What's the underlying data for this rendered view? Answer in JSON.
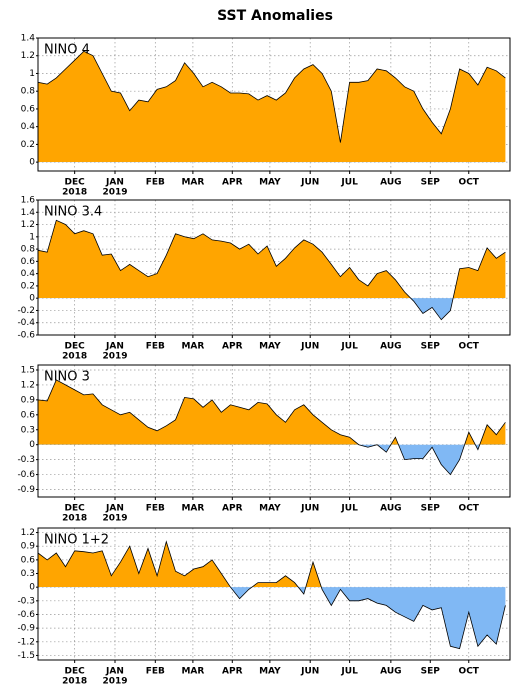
{
  "title": "SST Anomalies",
  "chart_data": [
    {
      "type": "area",
      "title": "NINO 4",
      "positive_color": "#ffa500",
      "negative_color": "#80b8f4",
      "grid": true,
      "x": [
        0,
        1,
        2,
        3,
        4,
        5,
        6,
        7,
        8,
        9,
        10,
        11,
        12,
        13,
        14,
        15,
        16,
        17,
        18,
        19,
        20,
        21,
        22,
        23,
        24,
        25,
        26,
        27,
        28,
        29,
        30,
        31,
        32,
        33,
        34,
        35,
        36,
        37,
        38,
        39,
        40,
        41,
        42,
        43,
        44,
        45,
        46,
        47,
        48,
        49,
        50,
        51
      ],
      "values": [
        0.9,
        0.88,
        0.95,
        1.05,
        1.15,
        1.25,
        1.2,
        1.0,
        0.8,
        0.78,
        0.58,
        0.7,
        0.68,
        0.82,
        0.85,
        0.92,
        1.12,
        1.0,
        0.85,
        0.9,
        0.85,
        0.78,
        0.78,
        0.77,
        0.7,
        0.75,
        0.7,
        0.78,
        0.95,
        1.05,
        1.1,
        1.0,
        0.8,
        0.22,
        0.9,
        0.9,
        0.92,
        1.05,
        1.03,
        0.95,
        0.85,
        0.8,
        0.6,
        0.45,
        0.32,
        0.6,
        1.05,
        1.0,
        0.87,
        1.07,
        1.03,
        0.95
      ],
      "xlim": [
        0,
        51.5
      ],
      "ylim": [
        -0.1,
        1.4
      ],
      "yticks": [
        0,
        0.2,
        0.4,
        0.6,
        0.8,
        1,
        1.2,
        1.4
      ],
      "xticks": [
        {
          "value": 4,
          "label": "DEC"
        },
        {
          "value": 8.4,
          "label": "JAN"
        },
        {
          "value": 12.8,
          "label": "FEB"
        },
        {
          "value": 16.9,
          "label": "MAR"
        },
        {
          "value": 21.2,
          "label": "APR"
        },
        {
          "value": 25.3,
          "label": "MAY"
        },
        {
          "value": 29.7,
          "label": "JUN"
        },
        {
          "value": 34,
          "label": "JUL"
        },
        {
          "value": 38.5,
          "label": "AUG"
        },
        {
          "value": 42.8,
          "label": "SEP"
        },
        {
          "value": 47,
          "label": "OCT"
        }
      ],
      "x_year_labels": [
        {
          "value": 4,
          "label": "2018"
        },
        {
          "value": 8.4,
          "label": "2019"
        }
      ]
    },
    {
      "type": "area",
      "title": "NINO 3.4",
      "positive_color": "#ffa500",
      "negative_color": "#80b8f4",
      "grid": true,
      "x": [
        0,
        1,
        2,
        3,
        4,
        5,
        6,
        7,
        8,
        9,
        10,
        11,
        12,
        13,
        14,
        15,
        16,
        17,
        18,
        19,
        20,
        21,
        22,
        23,
        24,
        25,
        26,
        27,
        28,
        29,
        30,
        31,
        32,
        33,
        34,
        35,
        36,
        37,
        38,
        39,
        40,
        41,
        42,
        43,
        44,
        45,
        46,
        47,
        48,
        49,
        50,
        51
      ],
      "values": [
        0.78,
        0.75,
        1.27,
        1.2,
        1.05,
        1.1,
        1.05,
        0.7,
        0.72,
        0.45,
        0.55,
        0.45,
        0.35,
        0.4,
        0.7,
        1.05,
        1.0,
        0.97,
        1.05,
        0.95,
        0.93,
        0.9,
        0.8,
        0.88,
        0.72,
        0.85,
        0.52,
        0.65,
        0.82,
        0.95,
        0.88,
        0.75,
        0.55,
        0.35,
        0.5,
        0.3,
        0.2,
        0.4,
        0.45,
        0.3,
        0.1,
        -0.05,
        -0.25,
        -0.15,
        -0.35,
        -0.2,
        0.48,
        0.5,
        0.45,
        0.82,
        0.65,
        0.75
      ],
      "xlim": [
        0,
        51.5
      ],
      "ylim": [
        -0.6,
        1.6
      ],
      "yticks": [
        -0.6,
        -0.4,
        -0.2,
        0,
        0.2,
        0.4,
        0.6,
        0.8,
        1,
        1.2,
        1.4,
        1.6
      ],
      "xticks": [
        {
          "value": 4,
          "label": "DEC"
        },
        {
          "value": 8.4,
          "label": "JAN"
        },
        {
          "value": 12.8,
          "label": "FEB"
        },
        {
          "value": 16.9,
          "label": "MAR"
        },
        {
          "value": 21.2,
          "label": "APR"
        },
        {
          "value": 25.3,
          "label": "MAY"
        },
        {
          "value": 29.7,
          "label": "JUN"
        },
        {
          "value": 34,
          "label": "JUL"
        },
        {
          "value": 38.5,
          "label": "AUG"
        },
        {
          "value": 42.8,
          "label": "SEP"
        },
        {
          "value": 47,
          "label": "OCT"
        }
      ],
      "x_year_labels": [
        {
          "value": 4,
          "label": "2018"
        },
        {
          "value": 8.4,
          "label": "2019"
        }
      ]
    },
    {
      "type": "area",
      "title": "NINO 3",
      "positive_color": "#ffa500",
      "negative_color": "#80b8f4",
      "grid": true,
      "x": [
        0,
        1,
        2,
        3,
        4,
        5,
        6,
        7,
        8,
        9,
        10,
        11,
        12,
        13,
        14,
        15,
        16,
        17,
        18,
        19,
        20,
        21,
        22,
        23,
        24,
        25,
        26,
        27,
        28,
        29,
        30,
        31,
        32,
        33,
        34,
        35,
        36,
        37,
        38,
        39,
        40,
        41,
        42,
        43,
        44,
        45,
        46,
        47,
        48,
        49,
        50,
        51
      ],
      "values": [
        0.9,
        0.88,
        1.3,
        1.2,
        1.1,
        1.0,
        1.02,
        0.8,
        0.7,
        0.6,
        0.65,
        0.5,
        0.35,
        0.28,
        0.38,
        0.5,
        0.95,
        0.92,
        0.75,
        0.9,
        0.65,
        0.8,
        0.75,
        0.7,
        0.85,
        0.82,
        0.6,
        0.45,
        0.7,
        0.8,
        0.6,
        0.45,
        0.3,
        0.2,
        0.15,
        0.0,
        -0.05,
        0.0,
        -0.15,
        0.15,
        -0.3,
        -0.28,
        -0.28,
        -0.05,
        -0.4,
        -0.6,
        -0.3,
        0.25,
        -0.1,
        0.4,
        0.2,
        0.45
      ],
      "xlim": [
        0,
        51.5
      ],
      "ylim": [
        -1.05,
        1.6
      ],
      "yticks": [
        -0.9,
        -0.6,
        -0.3,
        0,
        0.3,
        0.6,
        0.9,
        1.2,
        1.5
      ],
      "xticks": [
        {
          "value": 4,
          "label": "DEC"
        },
        {
          "value": 8.4,
          "label": "JAN"
        },
        {
          "value": 12.8,
          "label": "FEB"
        },
        {
          "value": 16.9,
          "label": "MAR"
        },
        {
          "value": 21.2,
          "label": "APR"
        },
        {
          "value": 25.3,
          "label": "MAY"
        },
        {
          "value": 29.7,
          "label": "JUN"
        },
        {
          "value": 34,
          "label": "JUL"
        },
        {
          "value": 38.5,
          "label": "AUG"
        },
        {
          "value": 42.8,
          "label": "SEP"
        },
        {
          "value": 47,
          "label": "OCT"
        }
      ],
      "x_year_labels": [
        {
          "value": 4,
          "label": "2018"
        },
        {
          "value": 8.4,
          "label": "2019"
        }
      ]
    },
    {
      "type": "area",
      "title": "NINO 1+2",
      "positive_color": "#ffa500",
      "negative_color": "#80b8f4",
      "grid": true,
      "x": [
        0,
        1,
        2,
        3,
        4,
        5,
        6,
        7,
        8,
        9,
        10,
        11,
        12,
        13,
        14,
        15,
        16,
        17,
        18,
        19,
        20,
        21,
        22,
        23,
        24,
        25,
        26,
        27,
        28,
        29,
        30,
        31,
        32,
        33,
        34,
        35,
        36,
        37,
        38,
        39,
        40,
        41,
        42,
        43,
        44,
        45,
        46,
        47,
        48,
        49,
        50,
        51
      ],
      "values": [
        0.75,
        0.6,
        0.75,
        0.45,
        0.8,
        0.78,
        0.75,
        0.8,
        0.25,
        0.55,
        0.9,
        0.3,
        0.85,
        0.25,
        1.0,
        0.35,
        0.25,
        0.4,
        0.45,
        0.6,
        0.3,
        0.0,
        -0.25,
        -0.05,
        0.1,
        0.1,
        0.1,
        0.25,
        0.1,
        -0.15,
        0.55,
        -0.05,
        -0.4,
        -0.05,
        -0.3,
        -0.3,
        -0.25,
        -0.35,
        -0.4,
        -0.55,
        -0.65,
        -0.75,
        -0.4,
        -0.5,
        -0.45,
        -1.3,
        -1.35,
        -0.55,
        -1.3,
        -1.05,
        -1.25,
        -0.4
      ],
      "xlim": [
        0,
        51.5
      ],
      "ylim": [
        -1.6,
        1.3
      ],
      "yticks": [
        -1.5,
        -1.2,
        -0.9,
        -0.6,
        -0.3,
        0,
        0.3,
        0.6,
        0.9,
        1.2
      ],
      "xticks": [
        {
          "value": 4,
          "label": "DEC"
        },
        {
          "value": 8.4,
          "label": "JAN"
        },
        {
          "value": 12.8,
          "label": "FEB"
        },
        {
          "value": 16.9,
          "label": "MAR"
        },
        {
          "value": 21.2,
          "label": "APR"
        },
        {
          "value": 25.3,
          "label": "MAY"
        },
        {
          "value": 29.7,
          "label": "JUN"
        },
        {
          "value": 34,
          "label": "JUL"
        },
        {
          "value": 38.5,
          "label": "AUG"
        },
        {
          "value": 42.8,
          "label": "SEP"
        },
        {
          "value": 47,
          "label": "OCT"
        }
      ],
      "x_year_labels": [
        {
          "value": 4,
          "label": "2018"
        },
        {
          "value": 8.4,
          "label": "2019"
        }
      ]
    }
  ]
}
